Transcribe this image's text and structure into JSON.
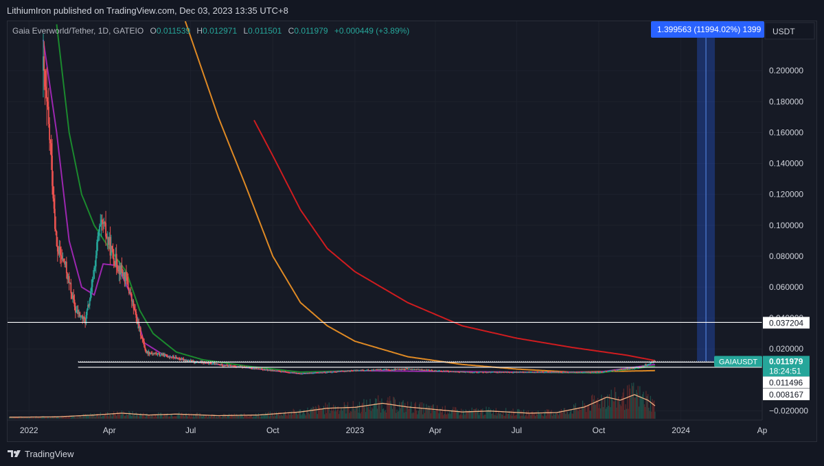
{
  "header": {
    "publisher": "LithiumIron published on TradingView.com, Dec 03, 2023 13:35 UTC+8"
  },
  "legend": {
    "symbol": "Gaia Everworld/Tether, 1D, GATEIO",
    "open_label": "O",
    "open": "0.011539",
    "high_label": "H",
    "high": "0.012971",
    "low_label": "L",
    "low": "0.011501",
    "close_label": "C",
    "close": "0.011979",
    "change": "+0.000449 (+3.89%)"
  },
  "currency": "USDT",
  "measure_label": "1.399563 (11994.02%) 1399",
  "footer": {
    "brand": "TradingView"
  },
  "colors": {
    "background": "#131722",
    "up": "#26a69a",
    "down": "#ef5350",
    "ma_purple": "#9c27b0",
    "ma_green": "#1b8a2e",
    "curve_orange": "#e08a24",
    "curve_red": "#d01c1f",
    "volume_ma": "#f4b183",
    "price_tag": "#26a69a",
    "measure": "#2962ff"
  },
  "chart_data": {
    "type": "candlestick",
    "symbol": "GAIAUSDT",
    "interval": "1D",
    "y_ticks": [
      "0.200000",
      "0.180000",
      "0.160000",
      "0.140000",
      "0.120000",
      "0.100000",
      "0.080000",
      "0.060000",
      "0.040000",
      "0.020000",
      "−0.020000"
    ],
    "y_tick_values": [
      0.2,
      0.18,
      0.16,
      0.14,
      0.12,
      0.1,
      0.08,
      0.06,
      0.04,
      0.02,
      -0.02
    ],
    "ylim": [
      -0.026,
      0.232
    ],
    "x_ticks": [
      "2022",
      "Apr",
      "Jul",
      "Oct",
      "2023",
      "Apr",
      "Jul",
      "Oct",
      "2024",
      "Ap"
    ],
    "x_tick_dates": [
      "2022-01-01",
      "2022-04-01",
      "2022-07-01",
      "2022-10-01",
      "2023-01-01",
      "2023-04-01",
      "2023-07-01",
      "2023-10-01",
      "2024-01-01",
      "2024-04-01"
    ],
    "xlim": [
      "2021-12-08",
      "2024-04-01"
    ],
    "horizontal_levels": [
      0.037204,
      0.011496,
      0.008167
    ],
    "price_labels": [
      {
        "symbol": "GAIAUSDT",
        "value": "0.011979",
        "countdown": "18:24:51"
      },
      {
        "value": "0.037204"
      },
      {
        "value": "0.011496"
      },
      {
        "value": "0.008167"
      }
    ],
    "price_keypoints": [
      [
        "2022-01-17",
        0.2
      ],
      [
        "2022-01-25",
        0.15
      ],
      [
        "2022-02-01",
        0.085
      ],
      [
        "2022-02-10",
        0.075
      ],
      [
        "2022-02-22",
        0.045
      ],
      [
        "2022-03-05",
        0.038
      ],
      [
        "2022-03-12",
        0.058
      ],
      [
        "2022-03-20",
        0.095
      ],
      [
        "2022-03-25",
        0.1
      ],
      [
        "2022-04-05",
        0.08
      ],
      [
        "2022-04-20",
        0.065
      ],
      [
        "2022-05-01",
        0.04
      ],
      [
        "2022-05-12",
        0.018
      ],
      [
        "2022-06-01",
        0.016
      ],
      [
        "2022-07-01",
        0.012
      ],
      [
        "2022-09-01",
        0.008
      ],
      [
        "2022-11-01",
        0.004
      ],
      [
        "2023-01-01",
        0.006
      ],
      [
        "2023-03-01",
        0.007
      ],
      [
        "2023-05-01",
        0.005
      ],
      [
        "2023-07-01",
        0.005
      ],
      [
        "2023-10-01",
        0.005
      ],
      [
        "2023-11-15",
        0.008
      ],
      [
        "2023-12-03",
        0.011979
      ]
    ],
    "ma_purple_points": [
      [
        "2022-01-17",
        0.22
      ],
      [
        "2022-02-01",
        0.16
      ],
      [
        "2022-02-15",
        0.09
      ],
      [
        "2022-03-01",
        0.06
      ],
      [
        "2022-03-15",
        0.055
      ],
      [
        "2022-03-25",
        0.075
      ],
      [
        "2022-04-10",
        0.074
      ],
      [
        "2022-04-25",
        0.055
      ],
      [
        "2022-05-10",
        0.024
      ],
      [
        "2022-06-01",
        0.016
      ],
      [
        "2022-07-01",
        0.012
      ],
      [
        "2022-09-01",
        0.008
      ],
      [
        "2022-11-01",
        0.004
      ],
      [
        "2023-01-01",
        0.006
      ],
      [
        "2023-07-01",
        0.005
      ],
      [
        "2023-10-01",
        0.005
      ],
      [
        "2023-12-03",
        0.01
      ]
    ],
    "ma_green_points": [
      [
        "2022-02-01",
        0.23
      ],
      [
        "2022-02-15",
        0.16
      ],
      [
        "2022-03-01",
        0.12
      ],
      [
        "2022-03-15",
        0.1
      ],
      [
        "2022-04-01",
        0.085
      ],
      [
        "2022-04-20",
        0.07
      ],
      [
        "2022-05-05",
        0.045
      ],
      [
        "2022-05-20",
        0.03
      ],
      [
        "2022-06-15",
        0.018
      ],
      [
        "2022-07-15",
        0.013
      ],
      [
        "2022-09-01",
        0.009
      ],
      [
        "2022-11-01",
        0.005
      ],
      [
        "2023-01-01",
        0.006
      ],
      [
        "2023-07-01",
        0.005
      ],
      [
        "2023-10-01",
        0.0045
      ],
      [
        "2023-12-03",
        0.009
      ]
    ],
    "curve_orange_points": [
      [
        "2022-06-25",
        0.232
      ],
      [
        "2022-08-01",
        0.17
      ],
      [
        "2022-09-01",
        0.125
      ],
      [
        "2022-10-01",
        0.08
      ],
      [
        "2022-11-01",
        0.05
      ],
      [
        "2022-12-01",
        0.035
      ],
      [
        "2023-01-01",
        0.025
      ],
      [
        "2023-03-01",
        0.015
      ],
      [
        "2023-05-01",
        0.01
      ],
      [
        "2023-07-01",
        0.007
      ],
      [
        "2023-09-01",
        0.005
      ],
      [
        "2023-12-03",
        0.006
      ]
    ],
    "curve_red_points": [
      [
        "2022-09-10",
        0.168
      ],
      [
        "2022-10-01",
        0.145
      ],
      [
        "2022-11-01",
        0.11
      ],
      [
        "2022-12-01",
        0.085
      ],
      [
        "2023-01-01",
        0.07
      ],
      [
        "2023-03-01",
        0.05
      ],
      [
        "2023-05-01",
        0.035
      ],
      [
        "2023-07-01",
        0.027
      ],
      [
        "2023-09-01",
        0.021
      ],
      [
        "2023-11-01",
        0.016
      ],
      [
        "2023-12-03",
        0.0125
      ]
    ],
    "volume_ma_points": [
      [
        "2021-12-10",
        0.05
      ],
      [
        "2022-02-01",
        0.06
      ],
      [
        "2022-03-15",
        0.12
      ],
      [
        "2022-04-15",
        0.18
      ],
      [
        "2022-05-15",
        0.12
      ],
      [
        "2022-06-15",
        0.15
      ],
      [
        "2022-08-01",
        0.1
      ],
      [
        "2022-09-15",
        0.12
      ],
      [
        "2022-11-01",
        0.22
      ],
      [
        "2022-12-01",
        0.34
      ],
      [
        "2023-01-01",
        0.37
      ],
      [
        "2023-02-01",
        0.5
      ],
      [
        "2023-03-01",
        0.38
      ],
      [
        "2023-04-01",
        0.3
      ],
      [
        "2023-05-01",
        0.22
      ],
      [
        "2023-06-01",
        0.25
      ],
      [
        "2023-07-15",
        0.18
      ],
      [
        "2023-08-15",
        0.2
      ],
      [
        "2023-09-15",
        0.38
      ],
      [
        "2023-10-10",
        0.7
      ],
      [
        "2023-10-25",
        0.6
      ],
      [
        "2023-11-10",
        0.78
      ],
      [
        "2023-11-25",
        0.6
      ],
      [
        "2023-12-03",
        0.42
      ]
    ]
  }
}
